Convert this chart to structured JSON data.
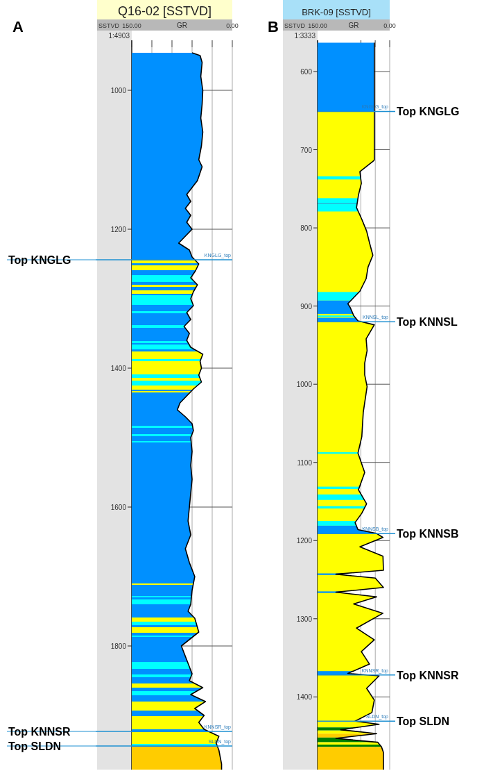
{
  "chart_data": [
    {
      "type": "line",
      "orientation": "horizontal",
      "title": "Q16-02 [SSTVD]",
      "xlabel": "GR",
      "ylabel": "SSTVD",
      "xlim": [
        150,
        0
      ],
      "xticks": [
        {
          "value": 150,
          "label": "150.00"
        },
        {
          "value": 120,
          "label": null
        },
        {
          "value": 90,
          "label": null
        },
        {
          "value": 60,
          "label": null
        },
        {
          "value": 30,
          "label": null
        },
        {
          "value": 0,
          "label": "0.00"
        }
      ],
      "ylim": [
        1978,
        928
      ],
      "yticks": [
        1000,
        1200,
        1400,
        1600,
        1800
      ],
      "grid": true,
      "series": [
        {
          "color": "#000000",
          "x": [
            946,
            950,
            960,
            980,
            1000,
            1020,
            1040,
            1060,
            1080,
            1100,
            1110,
            1130,
            1140,
            1150,
            1160,
            1170,
            1180,
            1190,
            1200,
            1210,
            1220,
            1230,
            1240,
            1250,
            1260,
            1270,
            1280,
            1290,
            1300,
            1310,
            1320,
            1330,
            1340,
            1350,
            1360,
            1370,
            1380,
            1390,
            1400,
            1410,
            1420,
            1430,
            1440,
            1450,
            1460,
            1470,
            1480,
            1490,
            1500,
            1520,
            1540,
            1560,
            1580,
            1600,
            1620,
            1640,
            1660,
            1680,
            1700,
            1720,
            1740,
            1750,
            1760,
            1780,
            1800,
            1820,
            1840,
            1850,
            1860,
            1870,
            1880,
            1890,
            1900,
            1910,
            1920,
            1930,
            1940,
            1950,
            1960,
            1970,
            1978
          ],
          "values": [
            60,
            48,
            45,
            47,
            44,
            45,
            47,
            44,
            46,
            50,
            45,
            52,
            60,
            68,
            62,
            70,
            62,
            68,
            60,
            70,
            80,
            64,
            60,
            50,
            55,
            62,
            52,
            58,
            62,
            58,
            68,
            62,
            72,
            64,
            68,
            62,
            44,
            48,
            46,
            50,
            46,
            58,
            68,
            78,
            82,
            70,
            60,
            58,
            62,
            60,
            62,
            60,
            62,
            64,
            66,
            62,
            70,
            64,
            56,
            60,
            62,
            66,
            56,
            50,
            76,
            68,
            60,
            64,
            44,
            62,
            40,
            56,
            42,
            50,
            42,
            20,
            24,
            20,
            18,
            16,
            16
          ]
        }
      ],
      "ref_lines": [
        {
          "axis": "y",
          "value": 1244,
          "label": "Top KNGLG",
          "color": "#1e90d2"
        },
        {
          "axis": "y",
          "value": 1923,
          "label": "Top KNNSR",
          "color": "#1e90d2"
        },
        {
          "axis": "y",
          "value": 1944,
          "label": "Top SLDN",
          "color": "#1e90d2"
        }
      ],
      "bands": [
        {
          "axis": "y",
          "from": 946,
          "to": 1945,
          "color": "#0090ff"
        },
        {
          "axis": "y",
          "from": 1245,
          "to": 1249,
          "color": "#ffff00"
        },
        {
          "axis": "y",
          "from": 1252,
          "to": 1259,
          "color": "#ffff00"
        },
        {
          "axis": "y",
          "from": 1266,
          "to": 1276,
          "color": "#00ffff"
        },
        {
          "axis": "y",
          "from": 1280,
          "to": 1283,
          "color": "#ffff00"
        },
        {
          "axis": "y",
          "from": 1288,
          "to": 1293,
          "color": "#ffff00"
        },
        {
          "axis": "y",
          "from": 1295,
          "to": 1309,
          "color": "#00ffff"
        },
        {
          "axis": "y",
          "from": 1318,
          "to": 1321,
          "color": "#00ffff"
        },
        {
          "axis": "y",
          "from": 1338,
          "to": 1342,
          "color": "#00ffff"
        },
        {
          "axis": "y",
          "from": 1361,
          "to": 1364,
          "color": "#00ffff"
        },
        {
          "axis": "y",
          "from": 1366,
          "to": 1373,
          "color": "#00ffff"
        },
        {
          "axis": "y",
          "from": 1376,
          "to": 1387,
          "color": "#ffff00"
        },
        {
          "axis": "y",
          "from": 1387,
          "to": 1390,
          "color": "#00ffff"
        },
        {
          "axis": "y",
          "from": 1390,
          "to": 1409,
          "color": "#ffff00"
        },
        {
          "axis": "y",
          "from": 1409,
          "to": 1414,
          "color": "#00ffff"
        },
        {
          "axis": "y",
          "from": 1414,
          "to": 1418,
          "color": "#ffff00"
        },
        {
          "axis": "y",
          "from": 1418,
          "to": 1425,
          "color": "#00ffff"
        },
        {
          "axis": "y",
          "from": 1425,
          "to": 1431,
          "color": "#ffff00"
        },
        {
          "axis": "y",
          "from": 1433,
          "to": 1435,
          "color": "#ffff00"
        },
        {
          "axis": "y",
          "from": 1483,
          "to": 1486,
          "color": "#00ffff"
        },
        {
          "axis": "y",
          "from": 1495,
          "to": 1498,
          "color": "#00ffff"
        },
        {
          "axis": "y",
          "from": 1505,
          "to": 1507,
          "color": "#00ffff"
        },
        {
          "axis": "y",
          "from": 1710,
          "to": 1712,
          "color": "#ffff00"
        },
        {
          "axis": "y",
          "from": 1728,
          "to": 1730,
          "color": "#00ffff"
        },
        {
          "axis": "y",
          "from": 1733,
          "to": 1740,
          "color": "#00ffff"
        },
        {
          "axis": "y",
          "from": 1759,
          "to": 1765,
          "color": "#ffff00"
        },
        {
          "axis": "y",
          "from": 1765,
          "to": 1770,
          "color": "#00ffff"
        },
        {
          "axis": "y",
          "from": 1773,
          "to": 1781,
          "color": "#ffff00"
        },
        {
          "axis": "y",
          "from": 1785,
          "to": 1787,
          "color": "#00ffff"
        },
        {
          "axis": "y",
          "from": 1823,
          "to": 1833,
          "color": "#00ffff"
        },
        {
          "axis": "y",
          "from": 1841,
          "to": 1845,
          "color": "#00ffff"
        },
        {
          "axis": "y",
          "from": 1854,
          "to": 1860,
          "color": "#ffff00"
        },
        {
          "axis": "y",
          "from": 1865,
          "to": 1871,
          "color": "#00ffff"
        },
        {
          "axis": "y",
          "from": 1880,
          "to": 1893,
          "color": "#ffff00"
        },
        {
          "axis": "y",
          "from": 1901,
          "to": 1920,
          "color": "#ffff00"
        },
        {
          "axis": "y",
          "from": 1924,
          "to": 1941,
          "color": "#ffff00"
        },
        {
          "axis": "y",
          "from": 1941,
          "to": 1944,
          "color": "#00ffff"
        },
        {
          "axis": "y",
          "from": 1945,
          "to": 1978,
          "color": "#ffcc00"
        }
      ],
      "annotations": [
        "A",
        "1:4903",
        {
          "text": "KNGLG_top",
          "y": 1244
        },
        {
          "text": "KNNSR_top",
          "y": 1923
        },
        {
          "text": "SLDN_top",
          "y": 1944
        }
      ]
    },
    {
      "type": "line",
      "orientation": "horizontal",
      "title": "BRK-09 [SSTVD]",
      "xlabel": "GR",
      "ylabel": "SSTVD",
      "xlim": [
        150,
        0
      ],
      "xticks": [
        {
          "value": 150,
          "label": "150.00"
        },
        {
          "value": 60,
          "label": null
        },
        {
          "value": 30,
          "label": null
        },
        {
          "value": 0,
          "label": "0.00"
        }
      ],
      "ylim": [
        1493,
        560
      ],
      "yticks": [
        600,
        700,
        800,
        900,
        1000,
        1100,
        1200,
        1300,
        1400
      ],
      "grid": true,
      "series": [
        {
          "color": "#000000",
          "x": [
            563,
            600,
            651,
            700,
            713,
            715,
            728,
            743,
            758,
            774,
            789,
            804,
            819,
            835,
            850,
            865,
            881,
            897,
            902,
            912,
            919,
            924,
            942,
            957,
            973,
            988,
            1003,
            1036,
            1067,
            1088,
            1113,
            1135,
            1153,
            1165,
            1177,
            1186,
            1191,
            1196,
            1208,
            1220,
            1238,
            1243,
            1248,
            1260,
            1266,
            1272,
            1281,
            1293,
            1312,
            1327,
            1342,
            1358,
            1370,
            1373,
            1389,
            1404,
            1420,
            1431,
            1435,
            1442,
            1447,
            1453,
            1458,
            1464,
            1471,
            1484,
            1493
          ],
          "values": [
            32,
            32,
            32,
            32,
            32,
            35,
            62,
            59,
            65,
            69,
            58,
            48,
            42,
            35,
            45,
            49,
            62,
            87,
            82,
            75,
            66,
            32,
            49,
            47,
            52,
            52,
            47,
            55,
            58,
            66,
            52,
            65,
            48,
            58,
            72,
            66,
            27,
            14,
            62,
            14,
            13,
            112,
            30,
            13,
            112,
            27,
            75,
            14,
            69,
            32,
            59,
            42,
            87,
            22,
            48,
            32,
            37,
            72,
            22,
            102,
            27,
            112,
            25,
            17,
            13,
            13,
            13
          ]
        }
      ],
      "ref_lines": [
        {
          "axis": "y",
          "value": 651,
          "label": "Top KNGLG",
          "color": "#1e90d2"
        },
        {
          "axis": "y",
          "value": 920,
          "label": "Top KNNSL",
          "color": "#1e90d2"
        },
        {
          "axis": "y",
          "value": 1191,
          "label": "Top KNNSB",
          "color": "#1e90d2"
        },
        {
          "axis": "y",
          "value": 1372,
          "label": "Top KNNSR",
          "color": "#1e90d2"
        },
        {
          "axis": "y",
          "value": 1431,
          "label": "Top SLDN",
          "color": "#1e90d2"
        }
      ],
      "bands": [
        {
          "axis": "y",
          "from": 560,
          "to": 651,
          "color": "#0090ff"
        },
        {
          "axis": "y",
          "from": 651,
          "to": 1431,
          "color": "#ffff00"
        },
        {
          "axis": "y",
          "from": 734,
          "to": 738,
          "color": "#00ffff"
        },
        {
          "axis": "y",
          "from": 762,
          "to": 768,
          "color": "#00ffff"
        },
        {
          "axis": "y",
          "from": 768,
          "to": 769,
          "color": "#0090ff"
        },
        {
          "axis": "y",
          "from": 769,
          "to": 779,
          "color": "#00ffff"
        },
        {
          "axis": "y",
          "from": 882,
          "to": 893,
          "color": "#00ffff"
        },
        {
          "axis": "y",
          "from": 893,
          "to": 910,
          "color": "#0090ff"
        },
        {
          "axis": "y",
          "from": 912,
          "to": 914,
          "color": "#00ffff"
        },
        {
          "axis": "y",
          "from": 915,
          "to": 920,
          "color": "#0090ff"
        },
        {
          "axis": "y",
          "from": 1087,
          "to": 1089,
          "color": "#00ffff"
        },
        {
          "axis": "y",
          "from": 1131,
          "to": 1134,
          "color": "#00ffff"
        },
        {
          "axis": "y",
          "from": 1141,
          "to": 1148,
          "color": "#00ffff"
        },
        {
          "axis": "y",
          "from": 1156,
          "to": 1159,
          "color": "#00ffff"
        },
        {
          "axis": "y",
          "from": 1175,
          "to": 1181,
          "color": "#00ffff"
        },
        {
          "axis": "y",
          "from": 1181,
          "to": 1191,
          "color": "#0090ff"
        },
        {
          "axis": "y",
          "from": 1242,
          "to": 1244,
          "color": "#0090ff"
        },
        {
          "axis": "y",
          "from": 1265,
          "to": 1267,
          "color": "#0090ff"
        },
        {
          "axis": "y",
          "from": 1367,
          "to": 1372,
          "color": "#0090ff"
        },
        {
          "axis": "y",
          "from": 1431,
          "to": 1439,
          "color": "#ffff00"
        },
        {
          "axis": "y",
          "from": 1439,
          "to": 1443,
          "color": "#008000"
        },
        {
          "axis": "y",
          "from": 1443,
          "to": 1447,
          "color": "#ffff00"
        },
        {
          "axis": "y",
          "from": 1447,
          "to": 1452,
          "color": "#ffcc00"
        },
        {
          "axis": "y",
          "from": 1452,
          "to": 1458,
          "color": "#008000"
        },
        {
          "axis": "y",
          "from": 1458,
          "to": 1461,
          "color": "#ffff00"
        },
        {
          "axis": "y",
          "from": 1461,
          "to": 1464,
          "color": "#008000"
        },
        {
          "axis": "y",
          "from": 1464,
          "to": 1493,
          "color": "#ffcc00"
        }
      ],
      "annotations": [
        "B",
        "1:3333",
        {
          "text": "KNGLG_top",
          "y": 651
        },
        {
          "text": "KNNSL_top",
          "y": 920
        },
        {
          "text": "KNNSB_top",
          "y": 1191
        },
        {
          "text": "KNNSR_top",
          "y": 1372
        },
        {
          "text": "SLDN_top",
          "y": 1431
        }
      ]
    }
  ]
}
